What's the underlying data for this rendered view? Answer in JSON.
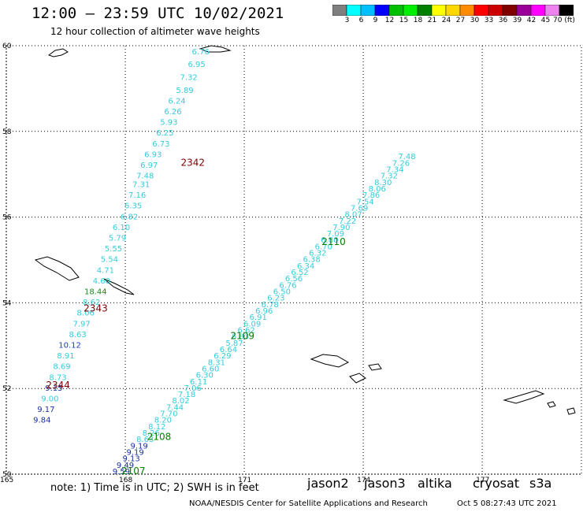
{
  "header": {
    "title": "12:00 – 23:59 UTC 10/02/2021",
    "subtitle": "12 hour collection of altimeter wave heights"
  },
  "colorbar": {
    "labels": [
      "3",
      "6",
      "9",
      "12",
      "15",
      "18",
      "21",
      "24",
      "27",
      "30",
      "33",
      "36",
      "39",
      "42",
      "45",
      "70 (ft)"
    ],
    "colors": [
      "#7f7f7f",
      "#00ffff",
      "#00bfff",
      "#0000ff",
      "#00bf00",
      "#00ee00",
      "#008000",
      "#ffff00",
      "#ffd700",
      "#ff8c00",
      "#ff0000",
      "#cc0000",
      "#800000",
      "#990099",
      "#ff00ff",
      "#ee82ee",
      "#000000"
    ]
  },
  "map": {
    "lat_ticks": [
      "60",
      "58",
      "56",
      "54",
      "52",
      "50"
    ],
    "lon_ticks": [
      "165",
      "168",
      "171",
      "174",
      "177"
    ]
  },
  "chart_data": {
    "type": "scatter",
    "title": "12:00 – 23:59 UTC 10/02/2021",
    "xlabel": "",
    "ylabel": "",
    "xlim": [
      165,
      179.5
    ],
    "ylim": [
      50,
      60
    ],
    "tracks": [
      {
        "name": "track-1",
        "points": [
          {
            "lon": 169.9,
            "lat": 59.8,
            "swh": "6.76",
            "c": "#33ccdd"
          },
          {
            "lon": 169.8,
            "lat": 59.5,
            "swh": "6.95",
            "c": "#33ccdd"
          },
          {
            "lon": 169.6,
            "lat": 59.2,
            "swh": "7.32",
            "c": "#33ccdd"
          },
          {
            "lon": 169.5,
            "lat": 58.9,
            "swh": "5.89",
            "c": "#33ccdd"
          },
          {
            "lon": 169.3,
            "lat": 58.65,
            "swh": "6.24",
            "c": "#33ccdd"
          },
          {
            "lon": 169.2,
            "lat": 58.4,
            "swh": "6.26",
            "c": "#33ccdd"
          },
          {
            "lon": 169.1,
            "lat": 58.15,
            "swh": "5.93",
            "c": "#33ccdd"
          },
          {
            "lon": 169.0,
            "lat": 57.9,
            "swh": "6.25",
            "c": "#33ccdd"
          },
          {
            "lon": 168.9,
            "lat": 57.65,
            "swh": "6.73",
            "c": "#33ccdd"
          },
          {
            "lon": 168.7,
            "lat": 57.4,
            "swh": "6.93",
            "c": "#33ccdd"
          },
          {
            "lon": 168.6,
            "lat": 57.15,
            "swh": "6.97",
            "c": "#33ccdd"
          },
          {
            "lon": 168.5,
            "lat": 56.9,
            "swh": "7.48",
            "c": "#33ccdd"
          },
          {
            "lon": 168.4,
            "lat": 56.7,
            "swh": "7.31",
            "c": "#33ccdd"
          },
          {
            "lon": 168.3,
            "lat": 56.45,
            "swh": "7.16",
            "c": "#33ccdd"
          },
          {
            "lon": 168.2,
            "lat": 56.2,
            "swh": "6.35",
            "c": "#33ccdd"
          },
          {
            "lon": 168.1,
            "lat": 55.95,
            "swh": "6.82",
            "c": "#33ccdd"
          },
          {
            "lon": 167.9,
            "lat": 55.7,
            "swh": "6.10",
            "c": "#33ccdd"
          },
          {
            "lon": 167.8,
            "lat": 55.45,
            "swh": "5.79",
            "c": "#33ccdd"
          },
          {
            "lon": 167.7,
            "lat": 55.2,
            "swh": "5.55",
            "c": "#33ccdd"
          },
          {
            "lon": 167.6,
            "lat": 54.95,
            "swh": "5.54",
            "c": "#33ccdd"
          },
          {
            "lon": 167.5,
            "lat": 54.7,
            "swh": "4.71",
            "c": "#33ccdd"
          },
          {
            "lon": 167.4,
            "lat": 54.45,
            "swh": "4.60",
            "c": "#33ccdd"
          },
          {
            "lon": 167.25,
            "lat": 54.2,
            "swh": "18.44",
            "c": "#1b8a1b"
          },
          {
            "lon": 167.15,
            "lat": 53.95,
            "swh": "8.62",
            "c": "#33ccdd"
          },
          {
            "lon": 167.0,
            "lat": 53.7,
            "swh": "8.06",
            "c": "#33ccdd"
          },
          {
            "lon": 166.9,
            "lat": 53.45,
            "swh": "7.97",
            "c": "#33ccdd"
          },
          {
            "lon": 166.8,
            "lat": 53.2,
            "swh": "8.63",
            "c": "#33ccdd"
          },
          {
            "lon": 166.6,
            "lat": 52.95,
            "swh": "10.12",
            "c": "#1a3fcc"
          },
          {
            "lon": 166.5,
            "lat": 52.7,
            "swh": "8.91",
            "c": "#33ccdd"
          },
          {
            "lon": 166.4,
            "lat": 52.45,
            "swh": "8.69",
            "c": "#33ccdd"
          },
          {
            "lon": 166.3,
            "lat": 52.2,
            "swh": "8.73",
            "c": "#33ccdd"
          },
          {
            "lon": 166.2,
            "lat": 51.95,
            "swh": "9.15",
            "c": "#1a2fa0"
          },
          {
            "lon": 166.1,
            "lat": 51.7,
            "swh": "9.00",
            "c": "#33ccdd"
          },
          {
            "lon": 166.0,
            "lat": 51.45,
            "swh": "9.17",
            "c": "#1a2fa0"
          },
          {
            "lon": 165.9,
            "lat": 51.2,
            "swh": "9.84",
            "c": "#1a2fa0"
          }
        ]
      },
      {
        "name": "track-2",
        "points": [
          {
            "lon": 167.9,
            "lat": 50.0,
            "swh": "9.59",
            "c": "#1a2fa0"
          },
          {
            "lon": 168.0,
            "lat": 50.15,
            "swh": "9.49",
            "c": "#1a2fa0"
          },
          {
            "lon": 168.15,
            "lat": 50.3,
            "swh": "9.13",
            "c": "#1a2fa0"
          },
          {
            "lon": 168.25,
            "lat": 50.45,
            "swh": "9.19",
            "c": "#1a2fa0"
          },
          {
            "lon": 168.35,
            "lat": 50.6,
            "swh": "9.19",
            "c": "#1a2fa0"
          },
          {
            "lon": 168.5,
            "lat": 50.75,
            "swh": "8.63",
            "c": "#33ccdd"
          },
          {
            "lon": 168.65,
            "lat": 50.9,
            "swh": "8.26",
            "c": "#33ccdd"
          },
          {
            "lon": 168.8,
            "lat": 51.05,
            "swh": "8.12",
            "c": "#33ccdd"
          },
          {
            "lon": 168.95,
            "lat": 51.2,
            "swh": "8.20",
            "c": "#33ccdd"
          },
          {
            "lon": 169.1,
            "lat": 51.35,
            "swh": "7.70",
            "c": "#33ccdd"
          },
          {
            "lon": 169.25,
            "lat": 51.5,
            "swh": "7.44",
            "c": "#33ccdd"
          },
          {
            "lon": 169.4,
            "lat": 51.65,
            "swh": "8.02",
            "c": "#33ccdd"
          },
          {
            "lon": 169.55,
            "lat": 51.8,
            "swh": "7.18",
            "c": "#33ccdd"
          },
          {
            "lon": 169.7,
            "lat": 51.95,
            "swh": "7.06",
            "c": "#33ccdd"
          },
          {
            "lon": 169.85,
            "lat": 52.1,
            "swh": "6.11",
            "c": "#33ccdd"
          },
          {
            "lon": 170.0,
            "lat": 52.25,
            "swh": "6.30",
            "c": "#33ccdd"
          },
          {
            "lon": 170.15,
            "lat": 52.4,
            "swh": "6.60",
            "c": "#33ccdd"
          },
          {
            "lon": 170.3,
            "lat": 52.55,
            "swh": "8.31",
            "c": "#33ccdd"
          },
          {
            "lon": 170.45,
            "lat": 52.7,
            "swh": "6.29",
            "c": "#33ccdd"
          },
          {
            "lon": 170.6,
            "lat": 52.85,
            "swh": "6.64",
            "c": "#33ccdd"
          },
          {
            "lon": 170.75,
            "lat": 53.0,
            "swh": "5.87",
            "c": "#33ccdd"
          },
          {
            "lon": 170.9,
            "lat": 53.15,
            "swh": "6.83",
            "c": "#33ccdd"
          },
          {
            "lon": 171.05,
            "lat": 53.3,
            "swh": "6.62",
            "c": "#33ccdd"
          },
          {
            "lon": 171.2,
            "lat": 53.45,
            "swh": "6.09",
            "c": "#33ccdd"
          },
          {
            "lon": 171.35,
            "lat": 53.6,
            "swh": "6.91",
            "c": "#33ccdd"
          },
          {
            "lon": 171.5,
            "lat": 53.75,
            "swh": "6.96",
            "c": "#33ccdd"
          },
          {
            "lon": 171.65,
            "lat": 53.9,
            "swh": "6.78",
            "c": "#33ccdd"
          },
          {
            "lon": 171.8,
            "lat": 54.05,
            "swh": "6.23",
            "c": "#33ccdd"
          },
          {
            "lon": 171.95,
            "lat": 54.2,
            "swh": "6.50",
            "c": "#33ccdd"
          },
          {
            "lon": 172.1,
            "lat": 54.35,
            "swh": "6.76",
            "c": "#33ccdd"
          },
          {
            "lon": 172.25,
            "lat": 54.5,
            "swh": "6.56",
            "c": "#33ccdd"
          },
          {
            "lon": 172.4,
            "lat": 54.65,
            "swh": "6.52",
            "c": "#33ccdd"
          },
          {
            "lon": 172.55,
            "lat": 54.8,
            "swh": "6.34",
            "c": "#33ccdd"
          },
          {
            "lon": 172.7,
            "lat": 54.95,
            "swh": "6.38",
            "c": "#33ccdd"
          },
          {
            "lon": 172.85,
            "lat": 55.1,
            "swh": "6.32",
            "c": "#33ccdd"
          },
          {
            "lon": 173.0,
            "lat": 55.25,
            "swh": "6.70",
            "c": "#33ccdd"
          },
          {
            "lon": 173.15,
            "lat": 55.4,
            "swh": "6.80",
            "c": "#33ccdd"
          },
          {
            "lon": 173.3,
            "lat": 55.55,
            "swh": "7.09",
            "c": "#33ccdd"
          },
          {
            "lon": 173.45,
            "lat": 55.7,
            "swh": "7.90",
            "c": "#33ccdd"
          },
          {
            "lon": 173.6,
            "lat": 55.85,
            "swh": "7.22",
            "c": "#33ccdd"
          },
          {
            "lon": 173.75,
            "lat": 56.0,
            "swh": "8.07",
            "c": "#33ccdd"
          },
          {
            "lon": 173.9,
            "lat": 56.15,
            "swh": "7.69",
            "c": "#33ccdd"
          },
          {
            "lon": 174.05,
            "lat": 56.3,
            "swh": "7.54",
            "c": "#33ccdd"
          },
          {
            "lon": 174.2,
            "lat": 56.45,
            "swh": "7.86",
            "c": "#33ccdd"
          },
          {
            "lon": 174.35,
            "lat": 56.6,
            "swh": "8.06",
            "c": "#33ccdd"
          },
          {
            "lon": 174.5,
            "lat": 56.75,
            "swh": "8.30",
            "c": "#33ccdd"
          },
          {
            "lon": 174.65,
            "lat": 56.9,
            "swh": "7.32",
            "c": "#33ccdd"
          },
          {
            "lon": 174.8,
            "lat": 57.05,
            "swh": "7.34",
            "c": "#33ccdd"
          },
          {
            "lon": 174.95,
            "lat": 57.2,
            "swh": "7.26",
            "c": "#33ccdd"
          },
          {
            "lon": 175.1,
            "lat": 57.35,
            "swh": "7.48",
            "c": "#33ccdd"
          }
        ]
      }
    ],
    "time_labels": [
      {
        "lon": 169.4,
        "lat": 57.2,
        "text": "2342",
        "c": "#800000"
      },
      {
        "lon": 166.95,
        "lat": 53.8,
        "text": "2343",
        "c": "#800000"
      },
      {
        "lon": 166.0,
        "lat": 52.0,
        "text": "2344",
        "c": "#800000"
      },
      {
        "lon": 172.95,
        "lat": 55.35,
        "text": "2110",
        "c": "#008000"
      },
      {
        "lon": 170.65,
        "lat": 53.15,
        "text": "2109",
        "c": "#008000"
      },
      {
        "lon": 168.55,
        "lat": 50.8,
        "text": "2108",
        "c": "#008000"
      },
      {
        "lon": 167.9,
        "lat": 50.0,
        "text": "2107",
        "c": "#008000"
      }
    ]
  },
  "legend": {
    "note": "note: 1) Time is in UTC; 2) SWH is in feet",
    "satellites": [
      {
        "name": "jason2",
        "color": "#0000cc"
      },
      {
        "name": "jason3",
        "color": "#009900"
      },
      {
        "name": "altika",
        "color": "#ff8c00"
      },
      {
        "name": "cryosat",
        "color": "#cc0000"
      },
      {
        "name": "s3a",
        "color": "#cc0000"
      }
    ]
  },
  "footer": {
    "credit": "NOAA/NESDIS Center for Satellite Applications and Research",
    "timestamp": "Oct 5 08:27:43 UTC 2021"
  }
}
